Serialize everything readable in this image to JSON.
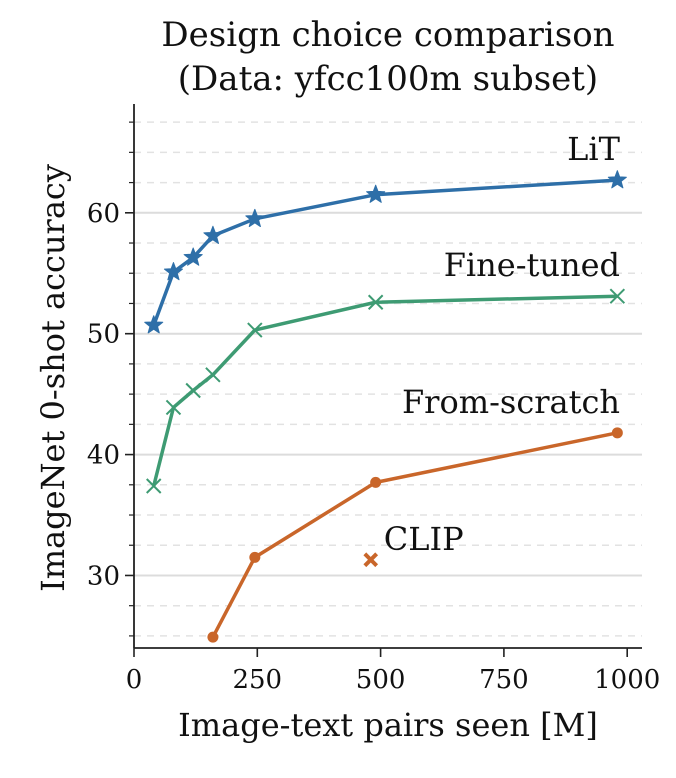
{
  "chart_data": {
    "type": "line",
    "title": [
      "Design choice comparison",
      "(Data: yfcc100m subset)"
    ],
    "xlabel": "Image-text pairs seen [M]",
    "ylabel": "ImageNet 0-shot accuracy",
    "xlim": [
      0,
      1030
    ],
    "ylim": [
      24,
      69
    ],
    "xticks": [
      0,
      250,
      500,
      750,
      1000
    ],
    "xtick_labels": [
      "0",
      "250",
      "500",
      "750",
      "1000"
    ],
    "yticks": [
      30,
      40,
      50,
      60
    ],
    "ytick_labels": [
      "30",
      "40",
      "50",
      "60"
    ],
    "minor_y_step": 2.5,
    "grid": "horizontal",
    "series": [
      {
        "name": "LiT",
        "color": "#2e6fa8",
        "marker": "star",
        "x": [
          40,
          80,
          120,
          160,
          245,
          490,
          980
        ],
        "y": [
          50.7,
          55.1,
          56.3,
          58.1,
          59.5,
          61.5,
          62.7
        ]
      },
      {
        "name": "Fine-tuned",
        "color": "#3e9b73",
        "marker": "x",
        "x": [
          40,
          80,
          120,
          160,
          245,
          490,
          980
        ],
        "y": [
          37.4,
          43.9,
          45.3,
          46.6,
          50.3,
          52.6,
          53.1
        ]
      },
      {
        "name": "From-scratch",
        "color": "#c9662a",
        "marker": "circle",
        "x": [
          160,
          245,
          490,
          980
        ],
        "y": [
          24.9,
          31.5,
          37.7,
          41.8
        ]
      }
    ],
    "points": [
      {
        "name": "CLIP",
        "color": "#c9662a",
        "marker": "X",
        "x": 480,
        "y": 31.3
      }
    ]
  }
}
